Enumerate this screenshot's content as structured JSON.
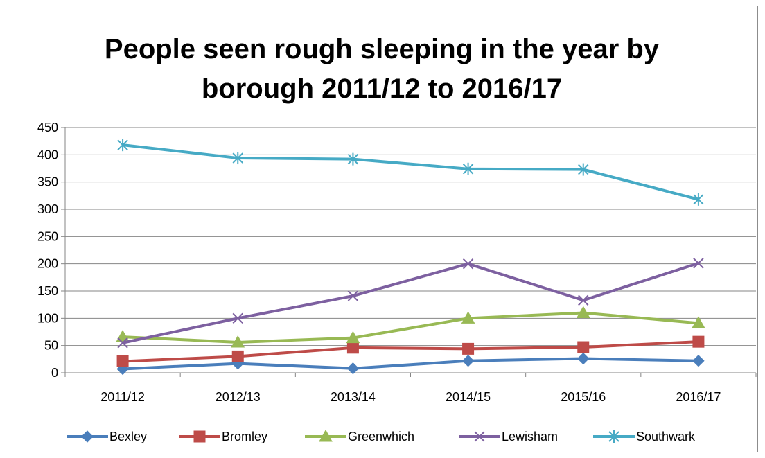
{
  "chart_data": {
    "type": "line",
    "title": "People seen rough sleeping in the year by borough 2011/12 to 2016/17",
    "title_lines": [
      "People seen rough sleeping in the year by",
      "borough 2011/12 to 2016/17"
    ],
    "categories": [
      "2011/12",
      "2012/13",
      "2013/14",
      "2014/15",
      "2015/16",
      "2016/17"
    ],
    "ylim": [
      0,
      450
    ],
    "yticks": [
      0,
      50,
      100,
      150,
      200,
      250,
      300,
      350,
      400,
      450
    ],
    "grid": true,
    "legend_position": "bottom",
    "series": [
      {
        "name": "Bexley",
        "values": [
          7,
          17,
          8,
          22,
          26,
          22
        ],
        "color": "#4a7ebb",
        "marker": "diamond"
      },
      {
        "name": "Bromley",
        "values": [
          21,
          30,
          46,
          44,
          47,
          57
        ],
        "color": "#be4b48",
        "marker": "square"
      },
      {
        "name": "Greenwhich",
        "values": [
          66,
          56,
          64,
          100,
          110,
          91
        ],
        "color": "#98b954",
        "marker": "triangle"
      },
      {
        "name": "Lewisham",
        "values": [
          55,
          100,
          141,
          200,
          133,
          201
        ],
        "color": "#7d60a0",
        "marker": "x"
      },
      {
        "name": "Southwark",
        "values": [
          418,
          394,
          392,
          374,
          373,
          318
        ],
        "color": "#46aac5",
        "marker": "star"
      }
    ]
  }
}
